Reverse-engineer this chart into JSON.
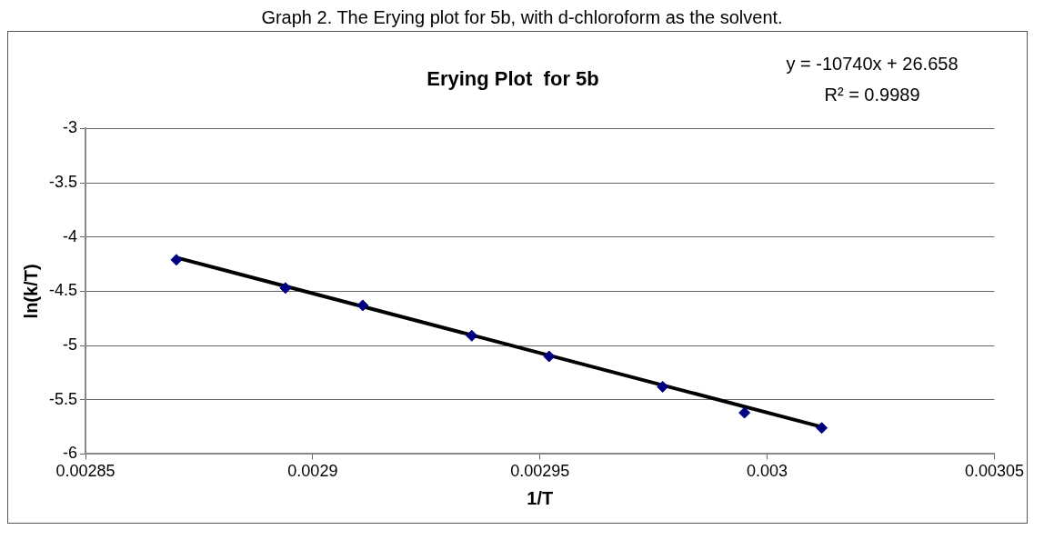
{
  "chart_data": {
    "type": "scatter",
    "title": "Erying Plot  for 5b",
    "xlabel": "1/T",
    "ylabel": "ln(k/T)",
    "x": [
      0.00287,
      0.002894,
      0.002911,
      0.002935,
      0.002952,
      0.002977,
      0.002995,
      0.003012
    ],
    "series": [
      {
        "color": "#000080",
        "marker": "diamond",
        "values": [
          -4.21,
          -4.47,
          -4.63,
          -4.91,
          -5.1,
          -5.38,
          -5.62,
          -5.76
        ]
      },
      {
        "type": "line",
        "color": "#000000",
        "x": [
          0.00287,
          0.003012
        ],
        "values": [
          -4.19,
          -5.75
        ]
      }
    ],
    "xlim": [
      0.00285,
      0.00305
    ],
    "xticks": [
      0.00285,
      0.0029,
      0.00295,
      0.003,
      0.00305
    ],
    "ylim": [
      -6,
      -3
    ],
    "yticks": [
      -6,
      -5.5,
      -5,
      -4.5,
      -4,
      -3.5,
      -3
    ],
    "grid": "y",
    "legend": false,
    "annotations": [
      "Graph 2. The Erying plot for 5b, with d-chloroform as the solvent.",
      "y = -10740x + 26.658",
      "R² = 0.9989"
    ]
  }
}
